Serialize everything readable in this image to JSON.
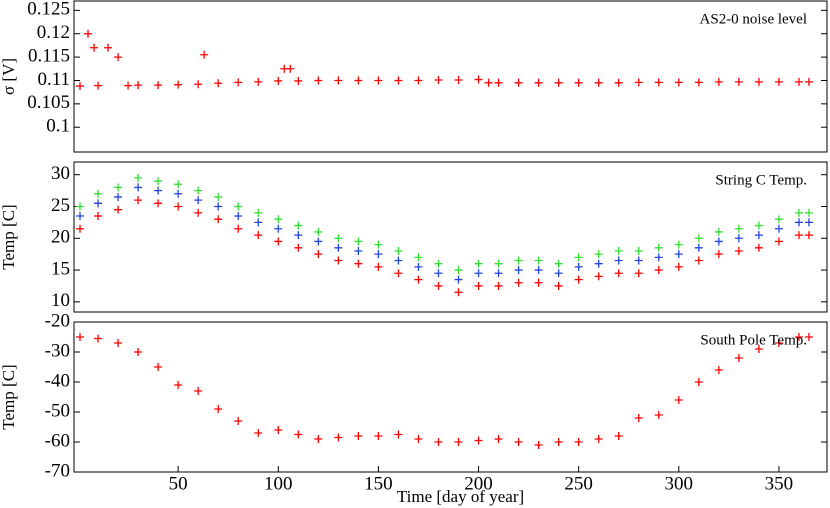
{
  "chart_data": [
    {
      "type": "scatter",
      "title": "AS2-0 noise level",
      "ylabel": "σ [V]",
      "xlim": [
        -2,
        374
      ],
      "ylim": [
        0.0947,
        0.127
      ],
      "yticks": [
        0.1,
        0.105,
        0.11,
        0.115,
        0.12,
        0.125
      ],
      "series": [
        {
          "color": "#ff0000",
          "x": [
            1,
            5,
            8,
            10,
            15,
            20,
            25,
            30,
            40,
            50,
            60,
            63,
            70,
            80,
            90,
            100,
            103,
            106,
            110,
            120,
            130,
            140,
            150,
            160,
            170,
            180,
            190,
            200,
            205,
            210,
            220,
            230,
            240,
            250,
            260,
            270,
            280,
            290,
            300,
            310,
            320,
            330,
            340,
            350,
            360,
            365
          ],
          "values": [
            0.1088,
            0.12,
            0.117,
            0.1089,
            0.117,
            0.115,
            0.1089,
            0.109,
            0.109,
            0.1091,
            0.1092,
            0.1155,
            0.1094,
            0.1096,
            0.1097,
            0.1099,
            0.1125,
            0.1125,
            0.1099,
            0.11,
            0.11,
            0.11,
            0.11,
            0.11,
            0.11,
            0.1101,
            0.1101,
            0.1102,
            0.1095,
            0.1095,
            0.1095,
            0.1095,
            0.1095,
            0.1095,
            0.1095,
            0.1095,
            0.1096,
            0.1096,
            0.1096,
            0.1096,
            0.1097,
            0.1097,
            0.1097,
            0.1097,
            0.1097,
            0.1097
          ]
        }
      ]
    },
    {
      "type": "scatter",
      "title": "String C  Temp.",
      "ylabel": "Temp [C]",
      "xlim": [
        -2,
        374
      ],
      "ylim": [
        8.4,
        32
      ],
      "yticks": [
        10,
        15,
        20,
        25,
        30
      ],
      "series": [
        {
          "color": "#33dd33",
          "x": [
            1,
            10,
            20,
            30,
            40,
            50,
            60,
            70,
            80,
            90,
            100,
            110,
            120,
            130,
            140,
            150,
            160,
            170,
            180,
            190,
            200,
            210,
            220,
            230,
            240,
            250,
            260,
            270,
            280,
            290,
            300,
            310,
            320,
            330,
            340,
            350,
            360,
            365
          ],
          "values": [
            25,
            27,
            28,
            29.5,
            29,
            28.5,
            27.5,
            26.5,
            25,
            24,
            23,
            22,
            21,
            20,
            19.5,
            19,
            18,
            17,
            16,
            15,
            16,
            16,
            16.5,
            16.5,
            16,
            17,
            17.5,
            18,
            18,
            18.5,
            19,
            20,
            21,
            21.5,
            22,
            23,
            24,
            24
          ]
        },
        {
          "color": "#2244dd",
          "x": [
            1,
            10,
            20,
            30,
            40,
            50,
            60,
            70,
            80,
            90,
            100,
            110,
            120,
            130,
            140,
            150,
            160,
            170,
            180,
            190,
            200,
            210,
            220,
            230,
            240,
            250,
            260,
            270,
            280,
            290,
            300,
            310,
            320,
            330,
            340,
            350,
            360,
            365
          ],
          "values": [
            23.5,
            25.5,
            26.5,
            28,
            27.5,
            27,
            26,
            25,
            23.5,
            22.5,
            21.5,
            20.5,
            19.5,
            18.5,
            18,
            17.5,
            16.5,
            15.5,
            14.5,
            13.5,
            14.5,
            14.5,
            15,
            15,
            14.5,
            15.5,
            16,
            16.5,
            16.5,
            17,
            17.5,
            18.5,
            19.5,
            20,
            20.5,
            21.5,
            22.5,
            22.5
          ]
        },
        {
          "color": "#ff0000",
          "x": [
            1,
            10,
            20,
            30,
            40,
            50,
            60,
            70,
            80,
            90,
            100,
            110,
            120,
            130,
            140,
            150,
            160,
            170,
            180,
            190,
            200,
            210,
            220,
            230,
            240,
            250,
            260,
            270,
            280,
            290,
            300,
            310,
            320,
            330,
            340,
            350,
            360,
            365
          ],
          "values": [
            21.5,
            23.5,
            24.5,
            26,
            25.5,
            25,
            24,
            23,
            21.5,
            20.5,
            19.5,
            18.5,
            17.5,
            16.5,
            16,
            15.5,
            14.5,
            13.5,
            12.5,
            11.5,
            12.5,
            12.5,
            13,
            13,
            12.5,
            13.5,
            14,
            14.5,
            14.5,
            15,
            15.5,
            16.5,
            17.5,
            18,
            18.5,
            19.5,
            20.5,
            20.5
          ]
        }
      ]
    },
    {
      "type": "scatter",
      "title": "South Pole Temp.",
      "ylabel": "Temp [C]",
      "xlabel": "Time [day of year]",
      "xlim": [
        -2,
        374
      ],
      "ylim": [
        -70,
        -20
      ],
      "yticks": [
        -70,
        -60,
        -50,
        -40,
        -30,
        -20
      ],
      "xticks": [
        50,
        100,
        150,
        200,
        250,
        300,
        350
      ],
      "series": [
        {
          "color": "#ff0000",
          "x": [
            1,
            10,
            20,
            30,
            40,
            50,
            60,
            70,
            80,
            90,
            100,
            110,
            120,
            130,
            140,
            150,
            160,
            170,
            180,
            190,
            200,
            210,
            220,
            230,
            240,
            250,
            260,
            270,
            280,
            290,
            300,
            310,
            320,
            330,
            340,
            350,
            360,
            365
          ],
          "values": [
            -25,
            -25.5,
            -27,
            -30,
            -35,
            -41,
            -43,
            -49,
            -53,
            -57,
            -56,
            -57.5,
            -59,
            -58.5,
            -58,
            -58,
            -57.5,
            -59,
            -60,
            -60,
            -59.5,
            -59,
            -60,
            -61,
            -60,
            -60,
            -59,
            -58,
            -52,
            -51,
            -46,
            -40,
            -36,
            -32,
            -29,
            -27,
            -25,
            -25
          ]
        }
      ]
    }
  ]
}
